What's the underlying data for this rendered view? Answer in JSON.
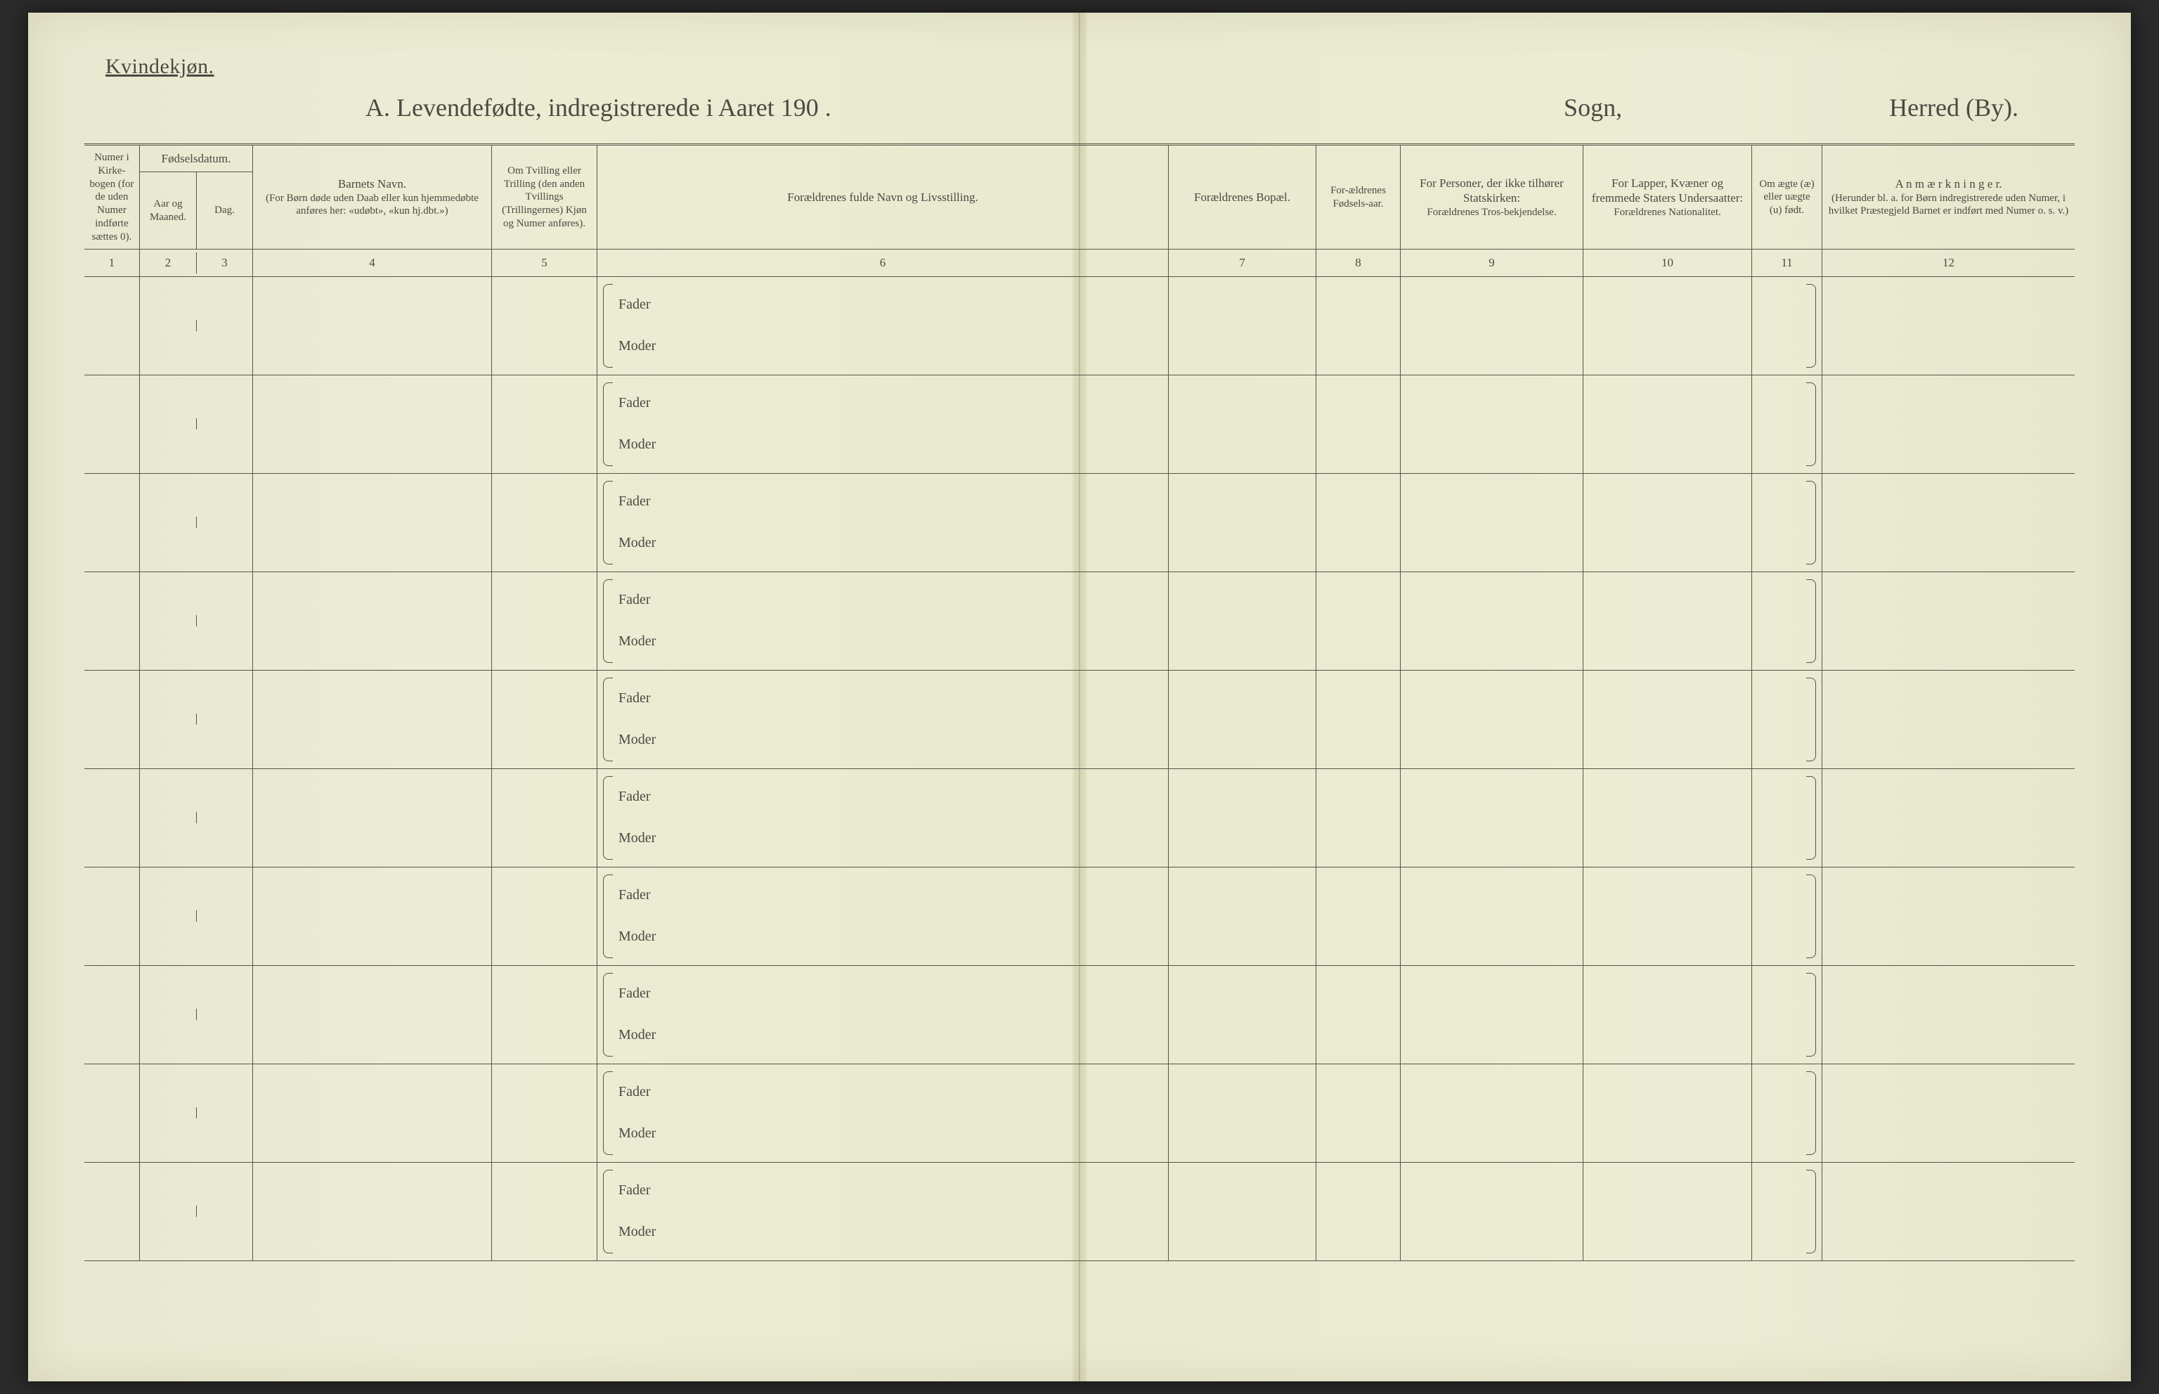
{
  "topLeftLabel": "Kvindekjøn.",
  "title": {
    "a": "A.  Levendefødte, indregistrerede i Aaret 190  .",
    "sogn": "Sogn,",
    "herred": "Herred (By)."
  },
  "columns": {
    "c1": "Numer i Kirke-bogen (for de uden Numer indførte sættes 0).",
    "c23_top": "Fødselsdatum.",
    "c2": "Aar og Maaned.",
    "c3": "Dag.",
    "c4_top": "Barnets Navn.",
    "c4_sub": "(For Børn døde uden Daab eller kun hjemmedøbte anføres her: «udøbt», «kun hj.dbt.»)",
    "c5": "Om Tvilling eller Trilling (den anden Tvillings (Trillingernes) Kjøn og Numer anføres).",
    "c6": "Forældrenes fulde Navn og Livsstilling.",
    "c7": "Forældrenes Bopæl.",
    "c8": "For-ældrenes Fødsels-aar.",
    "c9_top": "For Personer, der ikke tilhører Statskirken:",
    "c9_sub": "Forældrenes Tros-bekjendelse.",
    "c10_top": "For Lapper, Kvæner og fremmede Staters Undersaatter:",
    "c10_sub": "Forældrenes Nationalitet.",
    "c11": "Om ægte (æ) eller uægte (u) født.",
    "c12_top": "A n m æ r k n i n g e r.",
    "c12_sub": "(Herunder bl. a. for Børn indregistrerede uden Numer, i hvilket Præstegjeld Barnet er indført med Numer o. s. v.)"
  },
  "colNums": {
    "n1": "1",
    "n2": "2",
    "n3": "3",
    "n4": "4",
    "n5": "5",
    "n6": "6",
    "n7": "7",
    "n8": "8",
    "n9": "9",
    "n10": "10",
    "n11": "11",
    "n12": "12"
  },
  "rowLabels": {
    "fader": "Fader",
    "moder": "Moder"
  },
  "rowCount": 10,
  "style": {
    "paperColor": "#ececd4",
    "foldColor": "#d8d8b8",
    "textColor": "#4a4a42",
    "borderColor": "#555548",
    "backgroundColor": "#2b2b2b",
    "titleFontSize": 36,
    "headerFontSize": 17,
    "bodyFontSize": 20,
    "topLabelFontSize": 30
  }
}
